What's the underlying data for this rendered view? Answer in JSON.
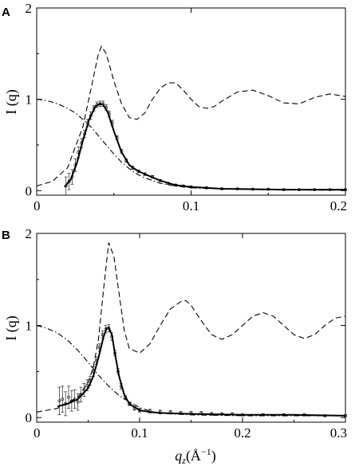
{
  "chart_data": [
    {
      "panel": "A",
      "type": "line",
      "ylabel": "I (q)",
      "xlabel": "",
      "xlim": [
        0,
        0.2
      ],
      "ylim": [
        -0.05,
        2.0
      ],
      "xticks": [
        0,
        0.1,
        0.2
      ],
      "xtick_labels": [
        "0",
        "0.1",
        "0.2"
      ],
      "yticks": [
        0,
        1,
        2
      ],
      "ytick_labels": [
        "0",
        "1",
        "2"
      ],
      "series": [
        {
          "style": "dashed",
          "x": [
            0.0,
            0.01,
            0.02,
            0.03,
            0.035,
            0.04,
            0.042,
            0.045,
            0.05,
            0.055,
            0.06,
            0.065,
            0.07,
            0.075,
            0.08,
            0.085,
            0.09,
            0.095,
            0.1,
            0.105,
            0.11,
            0.115,
            0.12,
            0.13,
            0.14,
            0.15,
            0.16,
            0.17,
            0.18,
            0.19,
            0.2
          ],
          "y": [
            0.05,
            0.1,
            0.25,
            0.7,
            1.1,
            1.5,
            1.58,
            1.5,
            1.2,
            0.95,
            0.8,
            0.78,
            0.85,
            1.0,
            1.12,
            1.18,
            1.18,
            1.1,
            1.0,
            0.92,
            0.9,
            0.92,
            0.98,
            1.08,
            1.1,
            1.04,
            0.96,
            0.95,
            1.02,
            1.06,
            1.03
          ]
        },
        {
          "style": "dashdot",
          "x": [
            0.0,
            0.005,
            0.01,
            0.015,
            0.02,
            0.025,
            0.03,
            0.035,
            0.04,
            0.045,
            0.05,
            0.055,
            0.06,
            0.065,
            0.07,
            0.08,
            0.09,
            0.1,
            0.12,
            0.14,
            0.16,
            0.18,
            0.2
          ],
          "y": [
            1.0,
            0.99,
            0.97,
            0.94,
            0.9,
            0.85,
            0.78,
            0.7,
            0.6,
            0.5,
            0.4,
            0.31,
            0.24,
            0.18,
            0.14,
            0.08,
            0.05,
            0.03,
            0.02,
            0.01,
            0.01,
            0.005,
            0.005
          ]
        },
        {
          "style": "fit",
          "x": [
            0.018,
            0.022,
            0.026,
            0.03,
            0.034,
            0.038,
            0.041,
            0.043,
            0.046,
            0.05,
            0.055,
            0.06,
            0.065,
            0.07,
            0.08,
            0.09,
            0.1,
            0.12,
            0.14,
            0.16,
            0.18,
            0.2
          ],
          "y": [
            0.04,
            0.12,
            0.3,
            0.55,
            0.78,
            0.92,
            0.95,
            0.94,
            0.86,
            0.65,
            0.42,
            0.28,
            0.22,
            0.18,
            0.11,
            0.06,
            0.04,
            0.02,
            0.015,
            0.01,
            0.01,
            0.01
          ]
        },
        {
          "style": "points",
          "x": [
            0.019,
            0.021,
            0.023,
            0.025,
            0.027,
            0.029,
            0.031,
            0.033,
            0.035,
            0.037,
            0.039,
            0.041,
            0.043,
            0.045,
            0.047,
            0.049,
            0.052,
            0.055,
            0.058,
            0.062,
            0.066,
            0.07,
            0.075,
            0.08,
            0.085,
            0.09,
            0.095,
            0.1,
            0.11,
            0.12,
            0.13,
            0.14,
            0.15,
            0.16,
            0.17,
            0.18,
            0.19,
            0.2
          ],
          "y": [
            0.05,
            0.1,
            0.15,
            0.28,
            0.42,
            0.52,
            0.62,
            0.74,
            0.82,
            0.9,
            0.94,
            0.95,
            0.95,
            0.91,
            0.84,
            0.74,
            0.58,
            0.43,
            0.33,
            0.25,
            0.21,
            0.18,
            0.15,
            0.11,
            0.08,
            0.06,
            0.05,
            0.04,
            0.03,
            0.02,
            0.02,
            0.015,
            0.015,
            0.01,
            0.01,
            0.01,
            0.01,
            0.01
          ],
          "err": [
            0.1,
            0.09,
            0.08,
            0.07,
            0.06,
            0.05,
            0.04,
            0.04,
            0.04,
            0.03,
            0.03,
            0.03,
            0.03,
            0.03,
            0.03,
            0.03,
            0.02,
            0.02,
            0.02,
            0.02,
            0.015,
            0.015,
            0.015,
            0.01,
            0.01,
            0.01,
            0.01,
            0.01,
            0.008,
            0.008,
            0.006,
            0.006,
            0.005,
            0.005,
            0.005,
            0.005,
            0.005,
            0.005
          ]
        }
      ]
    },
    {
      "panel": "B",
      "type": "line",
      "ylabel": "I (q)",
      "xlabel": "q_z(Å⁻¹)",
      "xlim": [
        0,
        0.3
      ],
      "ylim": [
        -0.05,
        2.0
      ],
      "xticks": [
        0,
        0.1,
        0.2,
        0.3
      ],
      "xtick_labels": [
        "0",
        "0.1",
        "0.2",
        "0.3"
      ],
      "yticks": [
        0,
        1,
        2
      ],
      "ytick_labels": [
        "0",
        "1",
        "2"
      ],
      "series": [
        {
          "style": "dashed",
          "x": [
            0.0,
            0.02,
            0.04,
            0.05,
            0.055,
            0.06,
            0.065,
            0.07,
            0.075,
            0.08,
            0.085,
            0.09,
            0.1,
            0.11,
            0.12,
            0.13,
            0.14,
            0.145,
            0.15,
            0.16,
            0.17,
            0.18,
            0.19,
            0.2,
            0.21,
            0.22,
            0.23,
            0.24,
            0.25,
            0.26,
            0.27,
            0.28,
            0.29,
            0.3
          ],
          "y": [
            0.06,
            0.1,
            0.22,
            0.38,
            0.55,
            0.85,
            1.4,
            1.9,
            1.75,
            1.35,
            0.95,
            0.75,
            0.7,
            0.8,
            1.0,
            1.18,
            1.26,
            1.27,
            1.22,
            1.05,
            0.9,
            0.85,
            0.9,
            1.0,
            1.1,
            1.14,
            1.1,
            1.0,
            0.9,
            0.86,
            0.9,
            1.0,
            1.08,
            1.1
          ]
        },
        {
          "style": "dashdot",
          "x": [
            0.0,
            0.01,
            0.02,
            0.03,
            0.04,
            0.05,
            0.06,
            0.07,
            0.08,
            0.09,
            0.1,
            0.11,
            0.12,
            0.13,
            0.15,
            0.2,
            0.25,
            0.3
          ],
          "y": [
            1.0,
            0.97,
            0.92,
            0.84,
            0.73,
            0.6,
            0.46,
            0.34,
            0.24,
            0.17,
            0.11,
            0.07,
            0.05,
            0.04,
            0.03,
            0.02,
            0.02,
            0.02
          ]
        },
        {
          "style": "fit",
          "x": [
            0.02,
            0.03,
            0.04,
            0.05,
            0.055,
            0.06,
            0.065,
            0.068,
            0.07,
            0.073,
            0.076,
            0.08,
            0.085,
            0.09,
            0.1,
            0.11,
            0.12,
            0.15,
            0.2,
            0.25,
            0.3
          ],
          "y": [
            0.12,
            0.15,
            0.2,
            0.32,
            0.45,
            0.65,
            0.88,
            0.97,
            0.98,
            0.9,
            0.7,
            0.45,
            0.25,
            0.15,
            0.08,
            0.06,
            0.05,
            0.04,
            0.03,
            0.03,
            0.02
          ]
        },
        {
          "style": "points",
          "x": [
            0.022,
            0.025,
            0.028,
            0.031,
            0.034,
            0.037,
            0.04,
            0.043,
            0.046,
            0.049,
            0.052,
            0.055,
            0.058,
            0.061,
            0.064,
            0.067,
            0.07,
            0.073,
            0.076,
            0.079,
            0.082,
            0.086,
            0.09,
            0.095,
            0.1,
            0.11,
            0.12,
            0.13,
            0.14,
            0.15,
            0.16,
            0.17,
            0.18,
            0.19,
            0.2,
            0.22,
            0.24,
            0.26,
            0.28,
            0.3
          ],
          "y": [
            0.18,
            0.2,
            0.15,
            0.22,
            0.18,
            0.2,
            0.17,
            0.25,
            0.3,
            0.35,
            0.4,
            0.5,
            0.62,
            0.76,
            0.9,
            0.96,
            0.97,
            0.88,
            0.7,
            0.5,
            0.34,
            0.22,
            0.15,
            0.1,
            0.08,
            0.07,
            0.06,
            0.06,
            0.05,
            0.05,
            0.05,
            0.04,
            0.04,
            0.04,
            0.03,
            0.03,
            0.03,
            0.03,
            0.02,
            0.02
          ],
          "err": [
            0.15,
            0.14,
            0.13,
            0.12,
            0.11,
            0.1,
            0.09,
            0.08,
            0.07,
            0.06,
            0.05,
            0.05,
            0.04,
            0.04,
            0.04,
            0.04,
            0.04,
            0.04,
            0.03,
            0.03,
            0.03,
            0.02,
            0.02,
            0.02,
            0.02,
            0.02,
            0.02,
            0.015,
            0.015,
            0.015,
            0.015,
            0.015,
            0.01,
            0.01,
            0.01,
            0.01,
            0.01,
            0.01,
            0.01,
            0.01
          ]
        }
      ]
    }
  ]
}
